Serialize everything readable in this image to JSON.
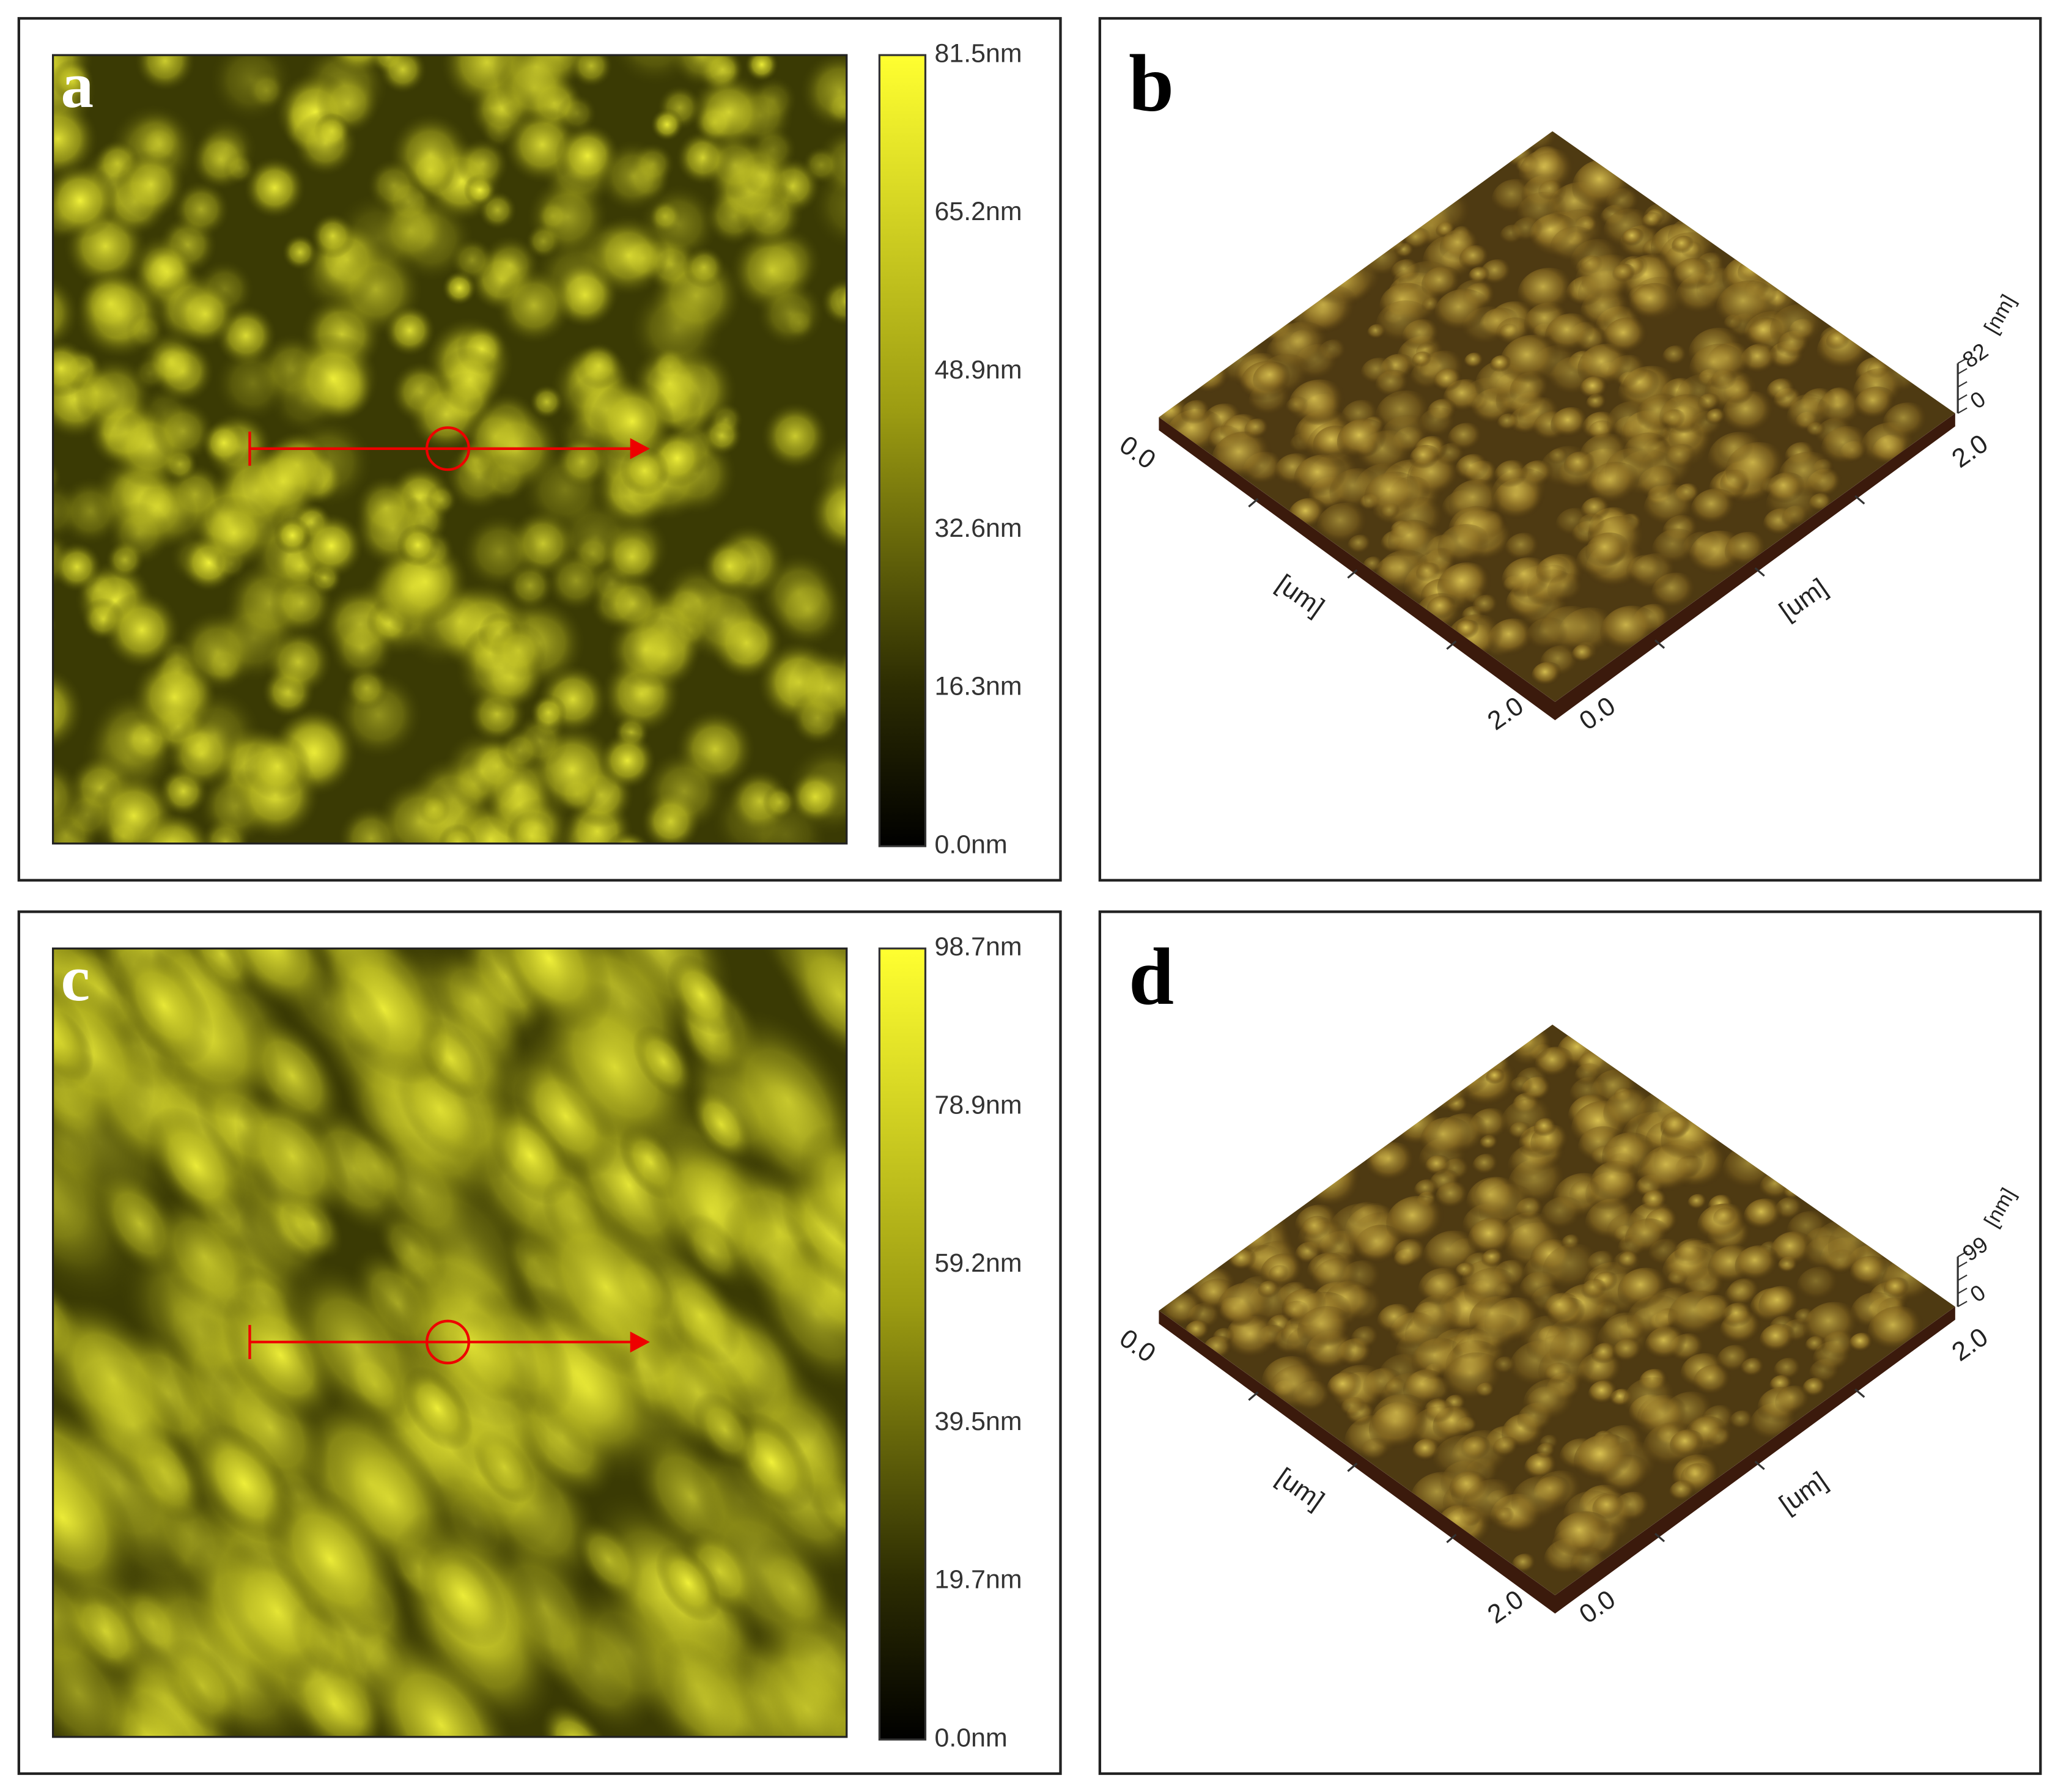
{
  "panels": [
    {
      "label": "a",
      "colorbar": {
        "ticks": [
          "81.5nm",
          "65.2nm",
          "48.9nm",
          "32.6nm",
          "16.3nm",
          "0.0nm"
        ]
      }
    },
    {
      "label": "b",
      "axes": {
        "left_start": "0.0",
        "left_unit": "[um]",
        "left_end": "2.0",
        "right_start": "0.0",
        "right_unit": "[um]",
        "right_end": "2.0",
        "z_unit": "[nm]",
        "z_max": "82",
        "z_min": "0"
      }
    },
    {
      "label": "c",
      "colorbar": {
        "ticks": [
          "98.7nm",
          "78.9nm",
          "59.2nm",
          "39.5nm",
          "19.7nm",
          "0.0nm"
        ]
      }
    },
    {
      "label": "d",
      "axes": {
        "left_start": "0.0",
        "left_unit": "[um]",
        "left_end": "2.0",
        "right_start": "0.0",
        "right_unit": "[um]",
        "right_end": "2.0",
        "z_unit": "[nm]",
        "z_max": "99",
        "z_min": "0"
      }
    }
  ]
}
